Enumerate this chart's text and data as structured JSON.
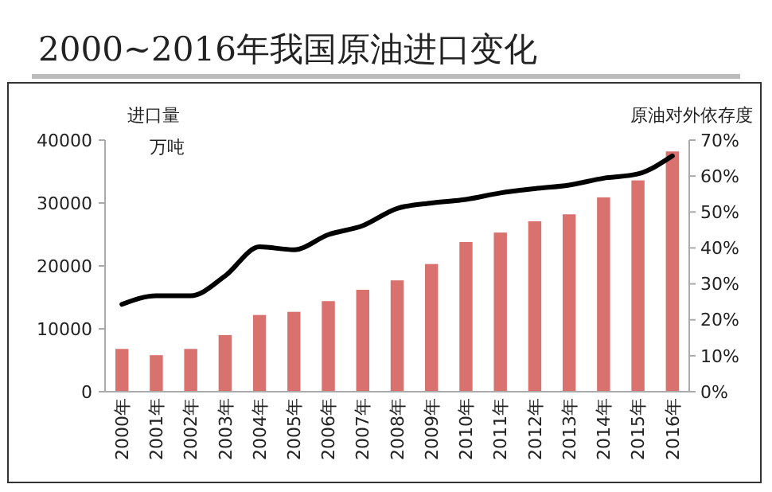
{
  "chart_data": {
    "type": "bar",
    "title": "2000~2016年我国原油进口变化",
    "ylabel": "进口量",
    "annotations": [
      "万吨"
    ],
    "y2label": "原油对外依存度",
    "categories": [
      "2000年",
      "2001年",
      "2002年",
      "2003年",
      "2004年",
      "2005年",
      "2006年",
      "2007年",
      "2008年",
      "2009年",
      "2010年",
      "2011年",
      "2012年",
      "2013年",
      "2014年",
      "2015年",
      "2016年"
    ],
    "series": [
      {
        "color": "#d9716e",
        "values": [
          6800,
          5800,
          6800,
          9000,
          12200,
          12700,
          14400,
          16200,
          17700,
          20300,
          23800,
          25300,
          27100,
          28200,
          30900,
          33600,
          38200
        ]
      },
      {
        "type": "line",
        "axis": "y2",
        "color": "#000000",
        "values": [
          24.3,
          26.7,
          26.7,
          32.2,
          40.3,
          39.5,
          43.7,
          46.2,
          51,
          52.5,
          53.5,
          55.3,
          56.5,
          57.5,
          59.4,
          60.6,
          65.6
        ]
      }
    ],
    "ylim": [
      0,
      40000
    ],
    "yticks": [
      0,
      10000,
      20000,
      30000,
      40000
    ],
    "y2lim": [
      0,
      70
    ],
    "y2ticks": [
      {
        "value": 0,
        "label": "0%"
      },
      {
        "value": 10,
        "label": "10%"
      },
      {
        "value": 20,
        "label": "20%"
      },
      {
        "value": 30,
        "label": "30%"
      },
      {
        "value": 40,
        "label": "40%"
      },
      {
        "value": 50,
        "label": "50%"
      },
      {
        "value": 60,
        "label": "60%"
      },
      {
        "value": 70,
        "label": "70%"
      }
    ],
    "grid": false
  }
}
